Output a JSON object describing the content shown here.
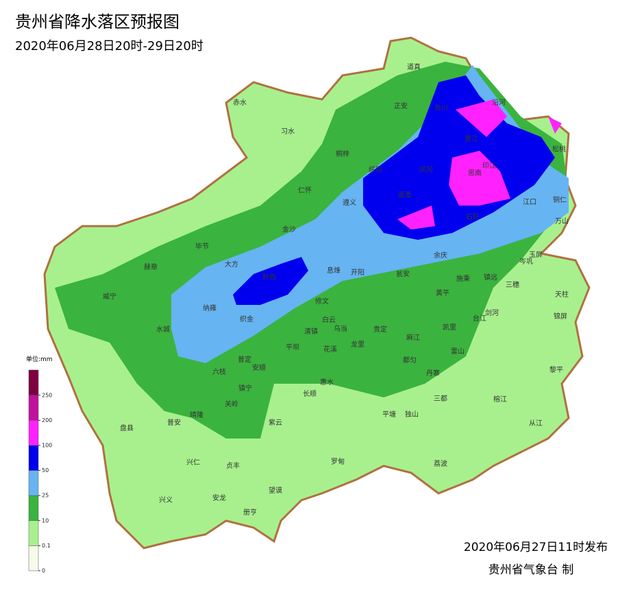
{
  "header": {
    "title": "贵州省降水落区预报图",
    "subtitle": "2020年06月28日20时-29日20时"
  },
  "legend": {
    "unit": "单位:mm",
    "ticks": [
      0,
      0.1,
      10,
      25,
      50,
      100,
      200,
      250
    ],
    "colors": [
      "#f6fbe9",
      "#a8f08e",
      "#3bb33f",
      "#66b4f2",
      "#0000ee",
      "#ff22ff",
      "#c0119e",
      "#7d0040"
    ]
  },
  "places": [
    "赤水",
    "习水",
    "道真",
    "正安",
    "务川",
    "沿河",
    "桐梓",
    "德江",
    "印江",
    "松桃",
    "绥阳",
    "凤冈",
    "思南",
    "仁怀",
    "湄潭",
    "遵义",
    "江口",
    "铜仁",
    "石阡",
    "万山",
    "金沙",
    "毕节",
    "余庆",
    "玉屏",
    "大方",
    "岑巩",
    "赫章",
    "黔西",
    "息烽",
    "开阳",
    "瓮安",
    "施秉",
    "镇远",
    "三穗",
    "天柱",
    "威宁",
    "黄平",
    "纳雍",
    "修文",
    "台江",
    "剑河",
    "锦屏",
    "织金",
    "白云",
    "乌当",
    "清镇",
    "贵定",
    "麻江",
    "凯里",
    "水城",
    "平坝",
    "花溪",
    "龙里",
    "雷山",
    "都匀",
    "普定",
    "安顺",
    "丹寨",
    "六枝",
    "黎平",
    "惠水",
    "镇宁",
    "长顺",
    "三都",
    "关岭",
    "平塘",
    "独山",
    "榕江",
    "晴隆",
    "普安",
    "紫云",
    "从江",
    "盘县",
    "兴仁",
    "贞丰",
    "罗甸",
    "荔波",
    "望谟",
    "兴义",
    "安龙",
    "册亨"
  ],
  "footer": {
    "issued": "2020年06月27日11时发布",
    "agency": "贵州省气象台 制"
  }
}
